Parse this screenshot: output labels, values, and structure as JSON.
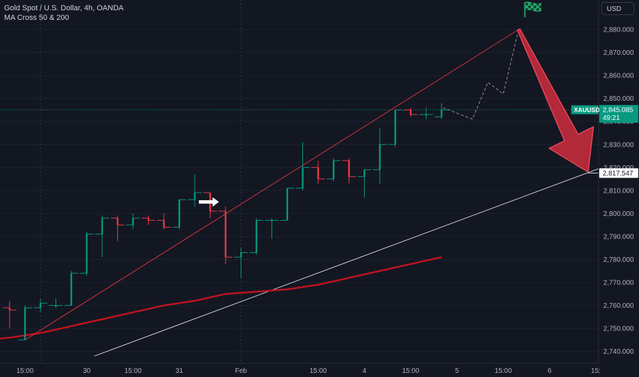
{
  "header": {
    "title": "Gold Spot / U.S. Dollar, 4h, OANDA",
    "indicator": "MA Cross 50 & 200",
    "currency": "USD"
  },
  "colors": {
    "background": "#131722",
    "grid": "#1e2230",
    "up": "#089981",
    "down": "#f23645",
    "ma_line": "#c2121f",
    "trendline": "#d9343f",
    "white_line": "#d1d4dc",
    "price_label": "#089981",
    "arrow": "#cf2d3d",
    "flag": "#26a269"
  },
  "chart_data": {
    "type": "candlestick",
    "symbol": "XAUUSD",
    "timeframe": "4h",
    "y_axis": {
      "ylim": [
        2734,
        2892
      ],
      "ticks": [
        2740,
        2750,
        2760,
        2770,
        2780,
        2790,
        2800,
        2810,
        2820,
        2830,
        2840,
        2850,
        2860,
        2870,
        2880
      ],
      "tick_labels": [
        "2,740.000",
        "2,750.000",
        "2,760.000",
        "2,770.000",
        "2,780.000",
        "2,790.000",
        "2,800.000",
        "2,810.000",
        "2,820.000",
        "2,830.000",
        "2,840.000",
        "2,850.000",
        "2,860.000",
        "2,870.000",
        "2,880.000"
      ]
    },
    "x_axis": {
      "labels": [
        {
          "bar": 1,
          "text": "15:00"
        },
        {
          "bar": 5,
          "text": "30"
        },
        {
          "bar": 8,
          "text": "15:00"
        },
        {
          "bar": 11,
          "text": "31"
        },
        {
          "bar": 15,
          "text": "Feb"
        },
        {
          "bar": 20,
          "text": "15:00"
        },
        {
          "bar": 23,
          "text": "4"
        },
        {
          "bar": 26,
          "text": "15:00"
        },
        {
          "bar": 29,
          "text": "5"
        },
        {
          "bar": 32,
          "text": "15:00"
        },
        {
          "bar": 35,
          "text": "6"
        },
        {
          "bar": 38,
          "text": "15:"
        }
      ],
      "vertical_grid_bars": [
        2,
        15
      ]
    },
    "bars_visible": 39,
    "candles": [
      {
        "o": 2759,
        "h": 2762,
        "l": 2750,
        "c": 2758
      },
      {
        "o": 2745,
        "h": 2760,
        "l": 2745,
        "c": 2759
      },
      {
        "o": 2759,
        "h": 2763,
        "l": 2757,
        "c": 2761
      },
      {
        "o": 2760,
        "h": 2763,
        "l": 2759,
        "c": 2760
      },
      {
        "o": 2760,
        "h": 2775,
        "l": 2760,
        "c": 2774
      },
      {
        "o": 2774,
        "h": 2792,
        "l": 2773,
        "c": 2791
      },
      {
        "o": 2791,
        "h": 2799,
        "l": 2781,
        "c": 2798
      },
      {
        "o": 2798,
        "h": 2799,
        "l": 2788,
        "c": 2795
      },
      {
        "o": 2795,
        "h": 2800,
        "l": 2793,
        "c": 2798
      },
      {
        "o": 2798,
        "h": 2799,
        "l": 2795,
        "c": 2797
      },
      {
        "o": 2797,
        "h": 2800,
        "l": 2793,
        "c": 2794
      },
      {
        "o": 2794,
        "h": 2806,
        "l": 2793,
        "c": 2806
      },
      {
        "o": 2806,
        "h": 2817,
        "l": 2803,
        "c": 2809
      },
      {
        "o": 2809,
        "h": 2809,
        "l": 2798,
        "c": 2801
      },
      {
        "o": 2801,
        "h": 2803,
        "l": 2778,
        "c": 2781
      },
      {
        "o": 2781,
        "h": 2785,
        "l": 2772,
        "c": 2783
      },
      {
        "o": 2783,
        "h": 2798,
        "l": 2782,
        "c": 2797
      },
      {
        "o": 2797,
        "h": 2798,
        "l": 2789,
        "c": 2797
      },
      {
        "o": 2797,
        "h": 2811,
        "l": 2797,
        "c": 2811
      },
      {
        "o": 2811,
        "h": 2831,
        "l": 2810,
        "c": 2820
      },
      {
        "o": 2820,
        "h": 2823,
        "l": 2813,
        "c": 2815
      },
      {
        "o": 2815,
        "h": 2824,
        "l": 2814,
        "c": 2823
      },
      {
        "o": 2823,
        "h": 2824,
        "l": 2813,
        "c": 2816
      },
      {
        "o": 2816,
        "h": 2819,
        "l": 2807,
        "c": 2819
      },
      {
        "o": 2819,
        "h": 2837,
        "l": 2813,
        "c": 2830
      },
      {
        "o": 2830,
        "h": 2845,
        "l": 2829,
        "c": 2845
      },
      {
        "o": 2845,
        "h": 2846,
        "l": 2842,
        "c": 2843
      },
      {
        "o": 2843,
        "h": 2846,
        "l": 2841,
        "c": 2843
      },
      {
        "o": 2842,
        "h": 2848,
        "l": 2841,
        "c": 2845
      }
    ],
    "ma_series": {
      "name": "MA",
      "points": [
        [
          -1.5,
          2745
        ],
        [
          0,
          2746
        ],
        [
          2,
          2748
        ],
        [
          4,
          2751
        ],
        [
          6,
          2754
        ],
        [
          8,
          2757
        ],
        [
          10,
          2760
        ],
        [
          12,
          2762
        ],
        [
          14,
          2765
        ],
        [
          16,
          2766
        ],
        [
          18,
          2767
        ],
        [
          20,
          2769
        ],
        [
          22,
          2772
        ],
        [
          24,
          2775
        ],
        [
          26,
          2778
        ],
        [
          28,
          2781
        ]
      ]
    },
    "trendline": {
      "from": [
        1,
        2745
      ],
      "to": [
        33,
        2880
      ]
    },
    "white_line": {
      "from": [
        5.5,
        2738
      ],
      "to": [
        39.2,
        2822
      ]
    },
    "projection_path": [
      [
        28.1,
        2846
      ],
      [
        30,
        2841
      ],
      [
        31,
        2857
      ],
      [
        32,
        2852
      ],
      [
        33,
        2880
      ]
    ],
    "current_price": {
      "symbol": "XAUUSD",
      "price": 2845.085,
      "label": "2,845.085",
      "countdown": "49:21"
    },
    "target_price": {
      "price": 2817.547,
      "label": "2,817.547",
      "bar": 37.5
    },
    "annotations": [
      {
        "type": "white-arrow",
        "bar": 13,
        "price": 2805
      },
      {
        "type": "red-down-arrow",
        "from": [
          33,
          2880
        ],
        "to": [
          37.5,
          2818
        ]
      },
      {
        "type": "flag",
        "bar": 33,
        "price": 2885
      }
    ]
  }
}
